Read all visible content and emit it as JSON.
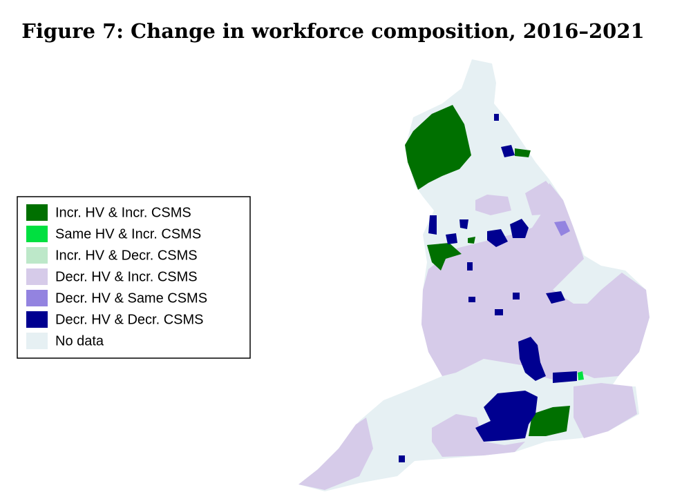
{
  "title": "Figure 7: Change in workforce composition, 2016–2021",
  "legend": [
    {
      "label": "Incr. HV & Incr. CSMS",
      "color": "#007000"
    },
    {
      "label": "Same HV & Incr. CSMS",
      "color": "#00e040"
    },
    {
      "label": "Incr. HV & Decr. CSMS",
      "color": "#bde8c9"
    },
    {
      "label": "Decr. HV & Incr. CSMS",
      "color": "#d6cbe9"
    },
    {
      "label": "Decr. HV & Same CSMS",
      "color": "#9383e0"
    },
    {
      "label": "Decr. HV & Decr. CSMS",
      "color": "#000090"
    },
    {
      "label": "No data",
      "color": "#e6f0f3"
    }
  ]
}
